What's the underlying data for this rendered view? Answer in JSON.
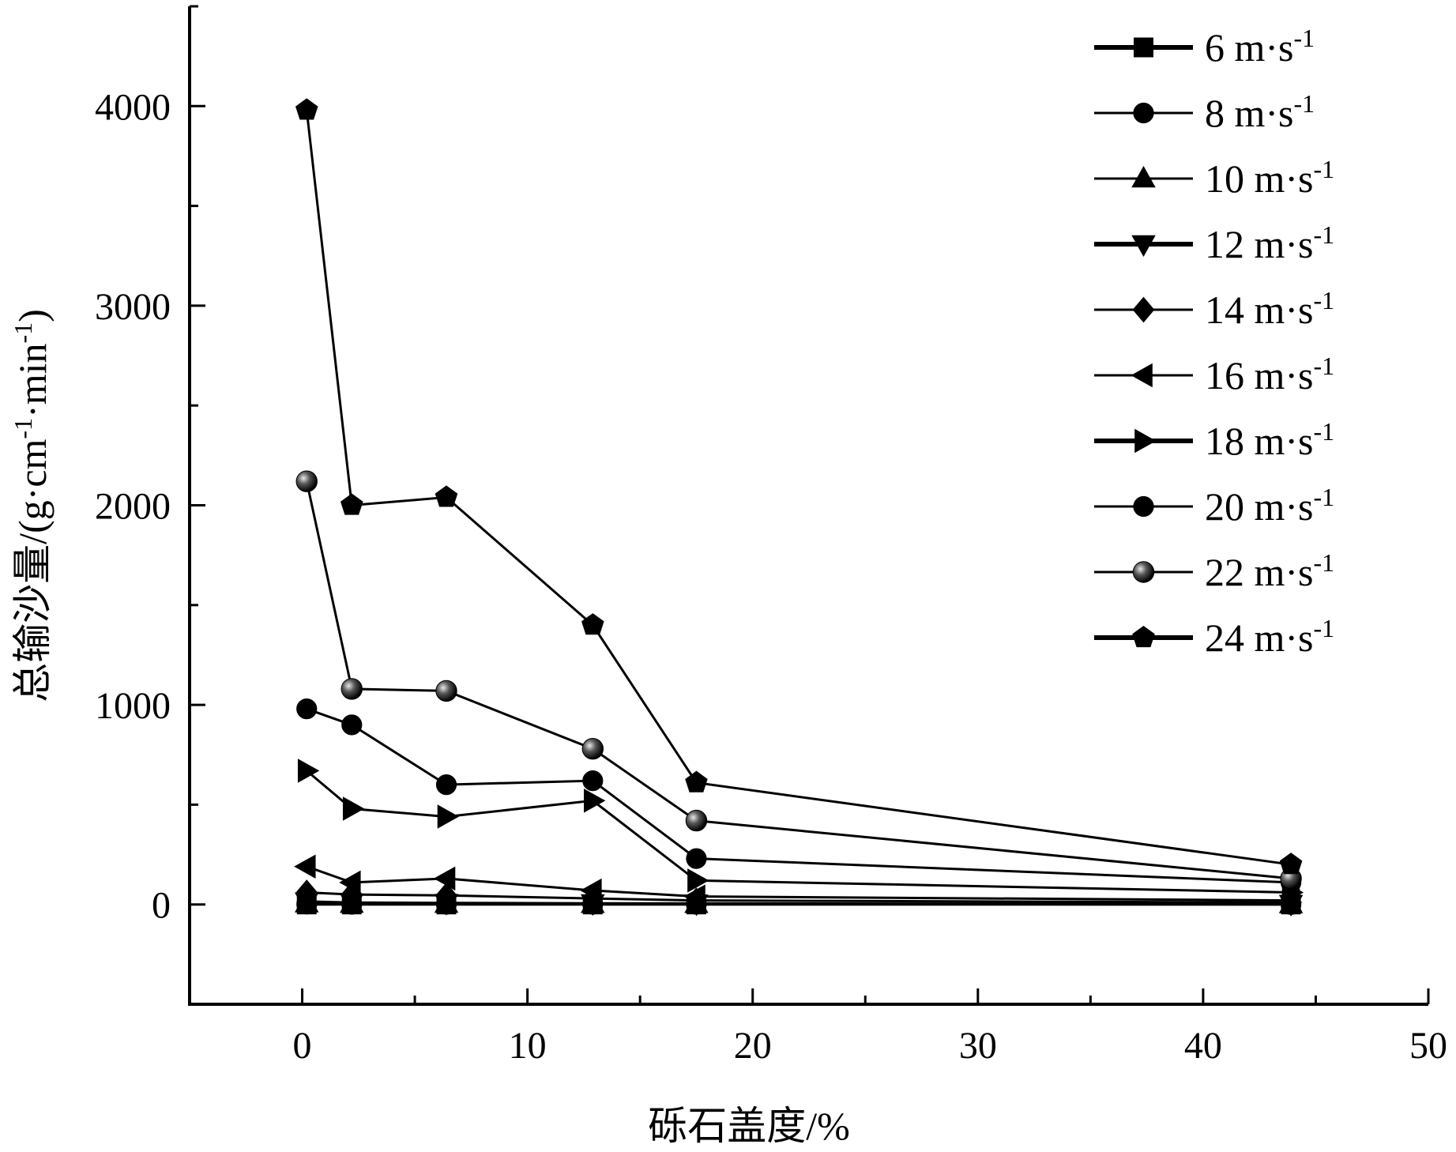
{
  "chart_data": {
    "type": "line",
    "title": "",
    "xlabel": "砾石盖度/%",
    "ylabel": "总输沙量/(g·cm-1·min-1)",
    "ylabel_parts": {
      "main": "总输沙量/(g·cm",
      "sup1": "-1",
      "mid": "·min",
      "sup2": "-1",
      "end": ")"
    },
    "xlim": [
      -5,
      50
    ],
    "ylim": [
      -500,
      4500
    ],
    "xticks": [
      0,
      10,
      20,
      30,
      40,
      50
    ],
    "yticks": [
      0,
      1000,
      2000,
      3000,
      4000
    ],
    "legend_position": "top-right",
    "grid": false,
    "x": [
      0.2,
      2.2,
      6.4,
      12.9,
      17.5,
      43.9
    ],
    "series": [
      {
        "name": "6 m·s-1",
        "label": "6 m·s",
        "sup": "-1",
        "marker": "square",
        "values": [
          0,
          0,
          0,
          0,
          0,
          0
        ]
      },
      {
        "name": "8 m·s-1",
        "label": "8 m·s",
        "sup": "-1",
        "marker": "circle",
        "values": [
          2,
          1,
          1,
          1,
          1,
          0
        ]
      },
      {
        "name": "10 m·s-1",
        "label": "10 m·s",
        "sup": "-1",
        "marker": "triangle-up",
        "values": [
          5,
          3,
          3,
          2,
          2,
          1
        ]
      },
      {
        "name": "12 m·s-1",
        "label": "12 m·s",
        "sup": "-1",
        "marker": "triangle-down",
        "values": [
          15,
          10,
          8,
          6,
          5,
          3
        ]
      },
      {
        "name": "14 m·s-1",
        "label": "14 m·s",
        "sup": "-1",
        "marker": "diamond",
        "values": [
          60,
          50,
          45,
          30,
          20,
          10
        ]
      },
      {
        "name": "16 m·s-1",
        "label": "16 m·s",
        "sup": "-1",
        "marker": "triangle-left",
        "values": [
          190,
          110,
          130,
          70,
          40,
          20
        ]
      },
      {
        "name": "18 m·s-1",
        "label": "18 m·s",
        "sup": "-1",
        "marker": "triangle-right",
        "values": [
          670,
          480,
          440,
          520,
          120,
          60
        ]
      },
      {
        "name": "20 m·s-1",
        "label": "20 m·s",
        "sup": "-1",
        "marker": "circle",
        "values": [
          980,
          900,
          600,
          620,
          230,
          110
        ]
      },
      {
        "name": "22 m·s-1",
        "label": "22 m·s",
        "sup": "-1",
        "marker": "sphere",
        "values": [
          2120,
          1080,
          1070,
          780,
          420,
          130
        ]
      },
      {
        "name": "24 m·s-1",
        "label": "24 m·s",
        "sup": "-1",
        "marker": "pentagon",
        "values": [
          3980,
          2000,
          2040,
          1400,
          610,
          200
        ]
      }
    ]
  }
}
